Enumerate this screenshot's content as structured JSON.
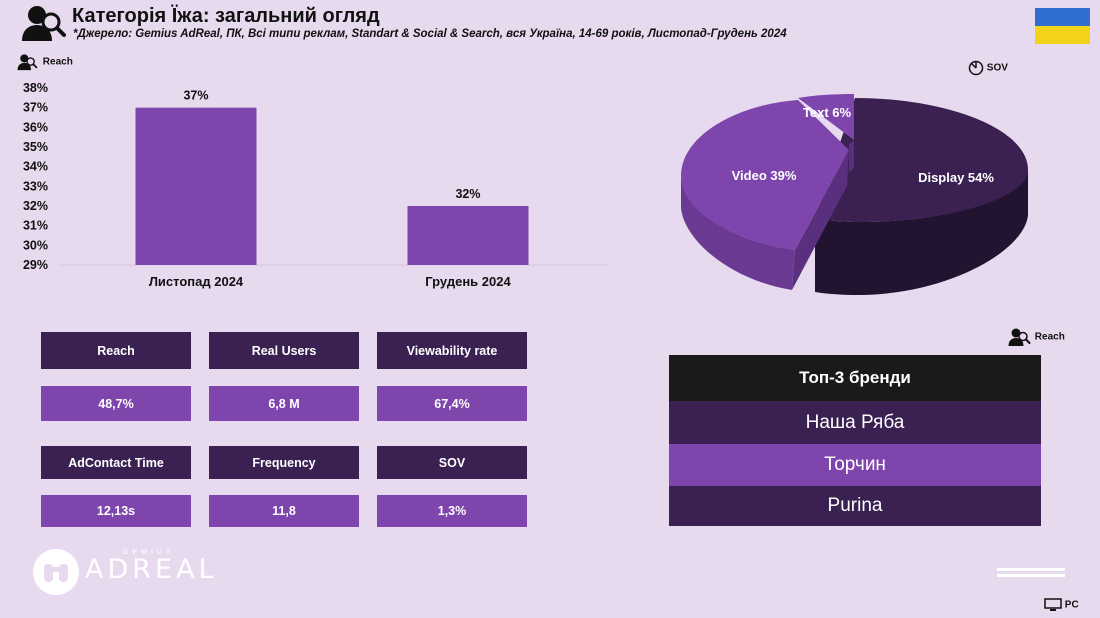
{
  "header": {
    "title": "Категорія Їжа: загальний огляд",
    "subtitle": "*Джерело: Gemius AdReal, ПК, Всі типи реклам, Standart & Social & Search, вся Україна, 14-69 років, Листопад-Грудень 2024",
    "icon": "people-search-icon",
    "flag": {
      "icon": "ukraine-flag-icon",
      "colors": [
        "#2f6fd0",
        "#f3d21a"
      ]
    }
  },
  "reach_label": {
    "text": "Reach",
    "icon": "people-search-icon"
  },
  "sov_label": {
    "text": "SOV",
    "icon": "pie-timer-icon"
  },
  "brands_reach_label": {
    "text": "Reach",
    "icon": "people-search-icon"
  },
  "pc_label": {
    "text": "PC",
    "icon": "desktop-icon"
  },
  "colors": {
    "background": "#e7d9ee",
    "dark_purple": "#3a2152",
    "light_purple": "#7e46ad",
    "black": "#1a1a1a"
  },
  "chart_data": [
    {
      "type": "bar",
      "categories": [
        "Листопад 2024",
        "Грудень 2024"
      ],
      "values": [
        37,
        32
      ],
      "value_labels": [
        "37%",
        "32%"
      ],
      "ylim": [
        29,
        38
      ],
      "yticks": [
        "29%",
        "30%",
        "31%",
        "32%",
        "33%",
        "34%",
        "35%",
        "36%",
        "37%",
        "38%"
      ],
      "grid": false,
      "color": "#7e46ad"
    },
    {
      "type": "pie",
      "labels": [
        "Display",
        "Video",
        "Text"
      ],
      "values": [
        54,
        39,
        6
      ],
      "value_labels": [
        "Display 54%",
        "Video 39%",
        "Text 6%"
      ],
      "colors": [
        "#3a2152",
        "#7e46ad",
        "#7e46ad"
      ],
      "style": "3d-exploded"
    }
  ],
  "metrics": {
    "row1_headers": [
      "Reach",
      "Real Users",
      "Viewability rate"
    ],
    "row1_values": [
      "48,7%",
      "6,8 M",
      "67,4%"
    ],
    "row2_headers": [
      "AdContact Time",
      "Frequency",
      "SOV"
    ],
    "row2_values": [
      "12,13s",
      "11,8",
      "1,3%"
    ]
  },
  "brands": {
    "title": "Топ-3 бренди",
    "items": [
      "Наша Ряба",
      "Торчин",
      "Purina"
    ]
  },
  "logo": {
    "brand": "ADREAL",
    "sub": "GEMIUS",
    "icon": "binoculars-icon"
  }
}
